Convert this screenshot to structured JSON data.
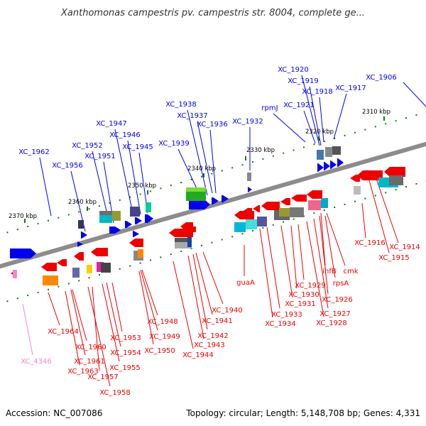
{
  "title": "Xanthomonas campestris pv. campestris str. 8004, complete ge...",
  "footer": {
    "accession": "Accession: NC_007086",
    "summary": "Topology: circular; Length: 5,148,708 bp; Genes: 4,331"
  },
  "colors": {
    "backbone": "#8c8c8c",
    "forward": "#0000ee",
    "reverse": "#ee0000",
    "rna": "#ee88cc",
    "tick": "#117711"
  },
  "ticks": [
    "2310 kbp",
    "2320 kbp",
    "2330 kbp",
    "2340 kbp",
    "2350 kbp",
    "2360 kbp",
    "2370 kbp"
  ],
  "forward_labels": [
    "XC_1906",
    "XC_1917",
    "XC_1918",
    "XC_1919",
    "XC_1920",
    "XC_1921",
    "rpmJ",
    "XC_1932",
    "XC_1936",
    "XC_1937",
    "XC_1938",
    "XC_1939",
    "XC_1945",
    "XC_1946",
    "XC_1947",
    "XC_1951",
    "XC_1952",
    "XC_1956",
    "XC_1962"
  ],
  "reverse_labels": [
    "XC_1914",
    "XC_1915",
    "XC_1916",
    "cmk",
    "rpsA",
    "ihfB",
    "XC_1926",
    "XC_1927",
    "XC_1928",
    "XC_1929",
    "XC_1930",
    "XC_1931",
    "XC_1933",
    "XC_1934",
    "guaA",
    "XC_1940",
    "XC_1941",
    "XC_1942",
    "XC_1943",
    "XC_1944",
    "XC_1948",
    "XC_1949",
    "XC_1950",
    "XC_1953",
    "XC_1954",
    "XC_1955",
    "XC_1957",
    "XC_1958",
    "XC_1960",
    "XC_1961",
    "XC_1963",
    "XC_1964"
  ],
  "rna_labels": [
    "XC_4346"
  ]
}
